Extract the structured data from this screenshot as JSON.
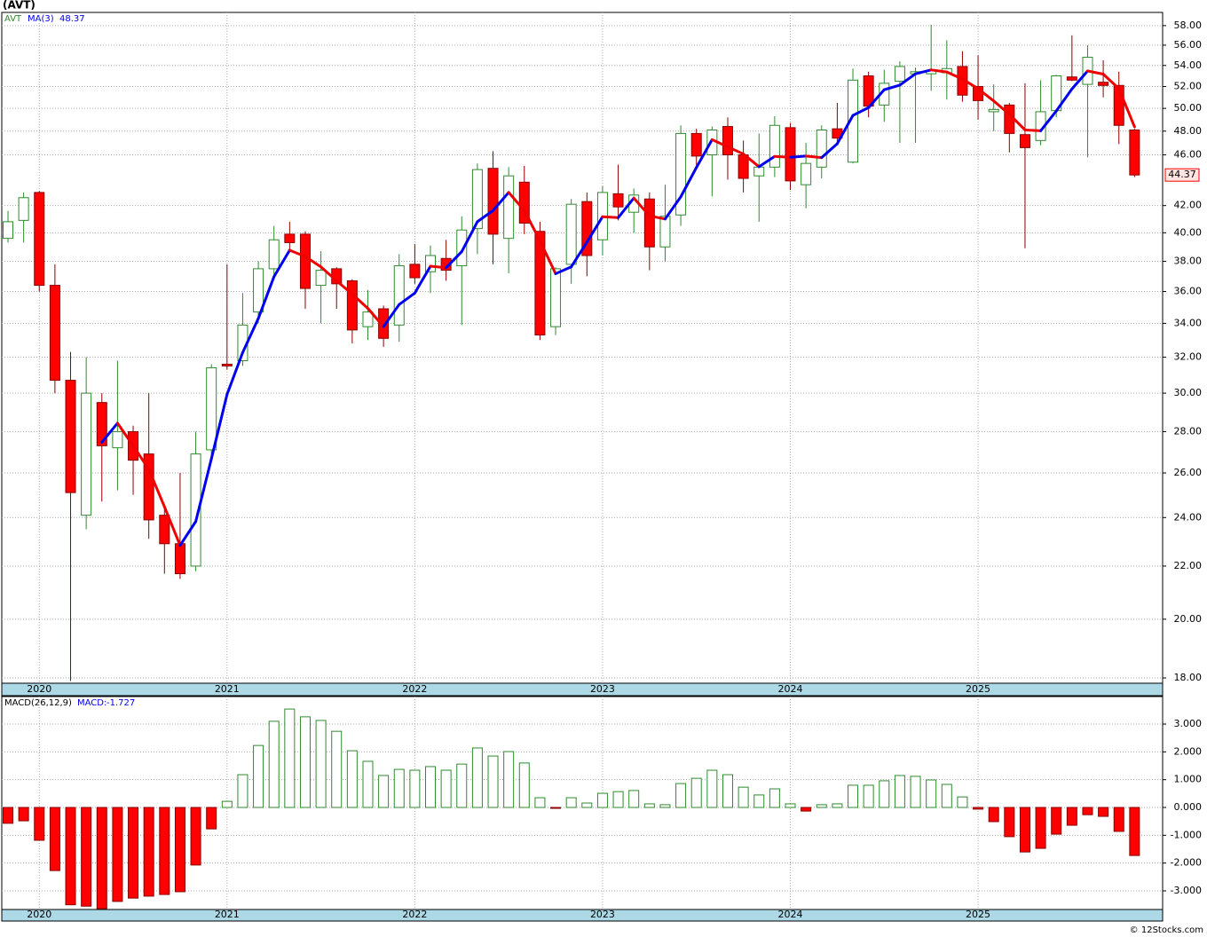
{
  "chart_data": [
    {
      "type": "candlestick",
      "title": "(AVT)",
      "name": "AVT",
      "log_scale": true,
      "grid": true,
      "up_color": "#2e8b2e",
      "down_color": "#ff0000",
      "categories": [
        null,
        null,
        "2020",
        null,
        null,
        null,
        null,
        null,
        null,
        null,
        null,
        null,
        null,
        null,
        "2021",
        null,
        null,
        null,
        null,
        null,
        null,
        null,
        null,
        null,
        null,
        null,
        "2022",
        null,
        null,
        null,
        null,
        null,
        null,
        null,
        null,
        null,
        null,
        null,
        "2023",
        null,
        null,
        null,
        null,
        null,
        null,
        null,
        null,
        null,
        null,
        null,
        "2024",
        null,
        null,
        null,
        null,
        null,
        null,
        null,
        null,
        null,
        null,
        null,
        "2025",
        null,
        null,
        null,
        null,
        null,
        null,
        null,
        null,
        null,
        null
      ],
      "open": [
        39.6,
        40.9,
        43.0,
        36.4,
        30.7,
        24.1,
        29.5,
        27.2,
        28.0,
        26.9,
        24.1,
        22.9,
        22.0,
        27.1,
        31.6,
        31.8,
        34.7,
        37.5,
        39.9,
        39.9,
        36.4,
        37.5,
        36.7,
        33.8,
        34.9,
        33.9,
        37.8,
        37.3,
        38.2,
        37.7,
        40.3,
        44.9,
        39.6,
        43.8,
        40.1,
        33.8,
        37.8,
        42.3,
        39.5,
        42.9,
        41.5,
        42.5,
        39.0,
        41.3,
        47.8,
        46.0,
        48.4,
        46.0,
        44.3,
        45.0,
        48.3,
        43.6,
        45.0,
        48.2,
        45.4,
        53.0,
        50.3,
        52.5,
        53.2,
        53.2,
        53.3,
        53.9,
        52.0,
        49.7,
        50.3,
        47.7,
        47.2,
        49.8,
        52.9,
        52.2,
        52.4,
        52.1,
        48.1
      ],
      "high": [
        41.6,
        43.0,
        43.1,
        37.8,
        32.3,
        32.0,
        30.0,
        31.8,
        28.3,
        30.0,
        24.5,
        26.0,
        28.0,
        31.6,
        37.8,
        35.9,
        38.0,
        40.5,
        40.8,
        40.1,
        38.7,
        37.6,
        36.8,
        36.1,
        35.1,
        38.5,
        39.2,
        39.1,
        39.5,
        41.2,
        45.3,
        46.3,
        45.0,
        45.1,
        40.8,
        37.6,
        42.5,
        43.0,
        43.5,
        45.2,
        43.3,
        43.0,
        43.6,
        48.5,
        48.2,
        48.4,
        49.2,
        47.2,
        47.8,
        49.3,
        48.7,
        47.0,
        48.5,
        50.5,
        53.7,
        53.4,
        53.6,
        54.4,
        53.8,
        58.1,
        56.5,
        55.4,
        55.0,
        52.2,
        50.5,
        52.3,
        52.6,
        53.1,
        57.0,
        56.0,
        54.5,
        53.4,
        48.2
      ],
      "low": [
        39.3,
        39.3,
        36.0,
        30.0,
        17.9,
        23.5,
        24.7,
        25.2,
        25.0,
        23.1,
        21.7,
        21.5,
        21.8,
        26.7,
        31.3,
        31.5,
        34.0,
        36.8,
        38.6,
        34.9,
        34.0,
        34.9,
        32.8,
        33.0,
        32.6,
        32.9,
        36.5,
        35.9,
        36.7,
        33.9,
        38.5,
        37.8,
        37.2,
        39.9,
        33.0,
        33.3,
        36.5,
        37.0,
        38.4,
        40.9,
        40.0,
        37.4,
        38.0,
        40.5,
        44.9,
        42.7,
        44.0,
        43.0,
        40.8,
        44.2,
        43.2,
        41.8,
        44.1,
        46.8,
        45.3,
        49.2,
        48.8,
        47.0,
        47.0,
        51.6,
        50.8,
        50.6,
        49.0,
        48.0,
        46.2,
        38.9,
        46.8,
        49.2,
        52.5,
        45.8,
        51.0,
        46.9,
        44.2
      ],
      "close": [
        40.8,
        42.6,
        36.4,
        30.7,
        25.1,
        30.0,
        27.3,
        28.0,
        26.6,
        23.9,
        22.9,
        21.7,
        26.9,
        31.4,
        31.5,
        33.9,
        37.5,
        39.5,
        39.3,
        36.2,
        37.4,
        36.5,
        33.6,
        34.7,
        33.1,
        37.7,
        36.9,
        38.4,
        37.4,
        40.2,
        44.8,
        39.9,
        44.3,
        40.7,
        33.3,
        37.5,
        42.1,
        38.4,
        43.0,
        41.9,
        42.8,
        39.0,
        41.2,
        47.8,
        45.9,
        48.1,
        46.0,
        44.1,
        45.0,
        48.5,
        43.9,
        45.3,
        48.1,
        47.4,
        52.6,
        50.2,
        52.3,
        53.9,
        53.4,
        53.5,
        53.7,
        51.2,
        50.7,
        49.9,
        47.8,
        46.6,
        49.7,
        53.0,
        52.6,
        54.8,
        52.1,
        48.5,
        44.37
      ],
      "ma": {
        "name": "MA(3)",
        "up_color": "#0000ee",
        "down_color": "#ee0000",
        "values": [
          null,
          null,
          null,
          null,
          null,
          null,
          27.47,
          28.43,
          27.3,
          26.17,
          24.47,
          22.83,
          23.83,
          26.67,
          29.93,
          32.27,
          34.3,
          36.97,
          38.77,
          38.33,
          37.63,
          36.7,
          35.83,
          34.93,
          33.8,
          35.17,
          35.9,
          37.67,
          37.57,
          38.67,
          40.8,
          41.63,
          43.0,
          41.63,
          39.43,
          37.17,
          37.63,
          39.33,
          41.17,
          41.1,
          42.57,
          41.23,
          41.0,
          42.67,
          44.97,
          47.27,
          46.67,
          46.07,
          45.03,
          45.87,
          45.8,
          45.9,
          45.77,
          46.93,
          49.37,
          50.07,
          51.7,
          52.13,
          53.2,
          53.57,
          53.37,
          52.7,
          51.8,
          50.67,
          49.47,
          48.1,
          48.03,
          49.77,
          51.77,
          53.47,
          53.17,
          51.8,
          48.37
        ]
      },
      "ylim": [
        17.83,
        59.39
      ],
      "yticks": [
        {
          "value": 18,
          "label": "18.00"
        },
        {
          "value": 20,
          "label": "20.00"
        },
        {
          "value": 22,
          "label": "22.00"
        },
        {
          "value": 24,
          "label": "24.00"
        },
        {
          "value": 26,
          "label": "26.00"
        },
        {
          "value": 28,
          "label": "28.00"
        },
        {
          "value": 30,
          "label": "30.00"
        },
        {
          "value": 32,
          "label": "32.00"
        },
        {
          "value": 34,
          "label": "34.00"
        },
        {
          "value": 36,
          "label": "36.00"
        },
        {
          "value": 38,
          "label": "38.00"
        },
        {
          "value": 40,
          "label": "40.00"
        },
        {
          "value": 42,
          "label": "42.00"
        },
        {
          "value": 46,
          "label": "46.00"
        },
        {
          "value": 48,
          "label": "48.00"
        },
        {
          "value": 50,
          "label": "50.00"
        },
        {
          "value": 52,
          "label": "52.00"
        },
        {
          "value": 54,
          "label": "54.00"
        },
        {
          "value": 56,
          "label": "56.00"
        },
        {
          "value": 58,
          "label": "58.00"
        }
      ]
    },
    {
      "type": "bar",
      "name": "MACD(26,12,9)",
      "current_label": "MACD:",
      "grid": true,
      "up_color": "#2e8b2e",
      "down_color": "#ff0000",
      "values": [
        -0.57,
        -0.48,
        -1.18,
        -2.27,
        -3.5,
        -3.55,
        -3.64,
        -3.38,
        -3.26,
        -3.19,
        -3.13,
        -3.03,
        -2.07,
        -0.77,
        0.22,
        1.18,
        2.23,
        3.1,
        3.54,
        3.26,
        3.13,
        2.74,
        2.04,
        1.66,
        1.15,
        1.37,
        1.34,
        1.47,
        1.34,
        1.56,
        2.14,
        1.85,
        2.01,
        1.6,
        0.35,
        -0.02,
        0.35,
        0.16,
        0.51,
        0.57,
        0.61,
        0.13,
        0.1,
        0.86,
        1.05,
        1.34,
        1.18,
        0.73,
        0.45,
        0.67,
        0.13,
        -0.13,
        0.1,
        0.13,
        0.8,
        0.8,
        0.96,
        1.15,
        1.12,
        0.99,
        0.83,
        0.38,
        -0.06,
        -0.51,
        -1.05,
        -1.6,
        -1.47,
        -0.96,
        -0.64,
        -0.26,
        -0.32,
        -0.86,
        -1.727
      ],
      "ylim": [
        -3.67,
        3.99
      ],
      "yticks": [
        {
          "value": 3,
          "label": "3.000"
        },
        {
          "value": 2,
          "label": "2.000"
        },
        {
          "value": 1,
          "label": "1.000"
        },
        {
          "value": 0,
          "label": "0.000"
        },
        {
          "value": -1,
          "label": "-1.000"
        },
        {
          "value": -2,
          "label": "-2.000"
        },
        {
          "value": -3,
          "label": "-3.000"
        }
      ]
    }
  ],
  "footer": "© 12Stocks.com"
}
